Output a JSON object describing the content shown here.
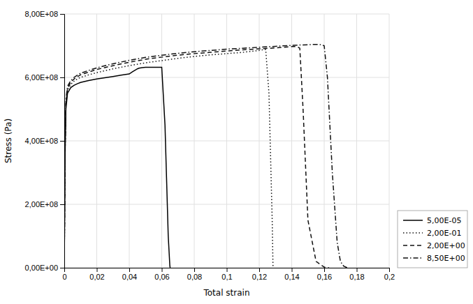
{
  "chart_data": {
    "type": "line",
    "xlabel": "Total strain",
    "ylabel": "Stress (Pa)",
    "xlim": [
      0,
      0.2
    ],
    "ylim": [
      0,
      800000000.0
    ],
    "xticks": [
      0,
      {
        "value": 0.02,
        "label": "0,02"
      },
      {
        "value": 0.04,
        "label": "0,04"
      },
      {
        "value": 0.06,
        "label": "0,06"
      },
      {
        "value": 0.08,
        "label": "0,08"
      },
      {
        "value": 0.1,
        "label": "0,1"
      },
      {
        "value": 0.12,
        "label": "0,12"
      },
      {
        "value": 0.14,
        "label": "0,14"
      },
      {
        "value": 0.16,
        "label": "0,16"
      },
      {
        "value": 0.18,
        "label": "0,18"
      },
      {
        "value": 0.2,
        "label": "0,2"
      }
    ],
    "yticks": [
      {
        "value": 0,
        "label": "0,00E+00"
      },
      {
        "value": 200000000.0,
        "label": "2,00E+08"
      },
      {
        "value": 400000000.0,
        "label": "4,00E+08"
      },
      {
        "value": 600000000.0,
        "label": "6,00E+08"
      },
      {
        "value": 800000000.0,
        "label": "8,00E+08"
      }
    ],
    "grid": true,
    "legend": "lower right",
    "series": [
      {
        "name": "5,00E-05",
        "color": "#000000",
        "line_style": "solid",
        "x": [
          0,
          0.0005,
          0.001,
          0.002,
          0.004,
          0.006,
          0.008,
          0.01,
          0.015,
          0.02,
          0.025,
          0.03,
          0.035,
          0.04,
          0.042,
          0.044,
          0.045,
          0.046,
          0.048,
          0.05,
          0.055,
          0.06,
          0.062,
          0.064,
          0.065,
          0.0652
        ],
        "values": [
          0,
          350000000.0,
          500000000.0,
          550000000.0,
          568000000.0,
          575000000.0,
          580000000.0,
          584000000.0,
          590000000.0,
          595000000.0,
          599000000.0,
          603000000.0,
          607000000.0,
          611000000.0,
          618000000.0,
          624000000.0,
          627000000.0,
          629000000.0,
          631000000.0,
          632000000.0,
          632000000.0,
          632000000.0,
          450000000.0,
          100000000.0,
          5000000.0,
          0
        ]
      },
      {
        "name": "2,00E-01",
        "color": "#111111",
        "line_style": "dotted",
        "x": [
          0,
          0.0005,
          0.001,
          0.002,
          0.004,
          0.006,
          0.008,
          0.01,
          0.015,
          0.02,
          0.025,
          0.03,
          0.04,
          0.05,
          0.06,
          0.07,
          0.08,
          0.09,
          0.1,
          0.11,
          0.12,
          0.122,
          0.124,
          0.126,
          0.128,
          0.1285
        ],
        "values": [
          0,
          360000000.0,
          510000000.0,
          560000000.0,
          578000000.0,
          588000000.0,
          595000000.0,
          600000000.0,
          608000000.0,
          615000000.0,
          621000000.0,
          627000000.0,
          637000000.0,
          646000000.0,
          653000000.0,
          660000000.0,
          666000000.0,
          671000000.0,
          675000000.0,
          679000000.0,
          685000000.0,
          687000000.0,
          688000000.0,
          550000000.0,
          150000000.0,
          0
        ]
      },
      {
        "name": "2,00E+00",
        "color": "#111111",
        "line_style": "dashed",
        "x": [
          0,
          0.0005,
          0.001,
          0.002,
          0.004,
          0.006,
          0.008,
          0.01,
          0.015,
          0.02,
          0.025,
          0.03,
          0.04,
          0.05,
          0.06,
          0.07,
          0.08,
          0.09,
          0.1,
          0.11,
          0.12,
          0.13,
          0.135,
          0.14,
          0.142,
          0.144,
          0.145,
          0.147,
          0.15,
          0.155,
          0.16,
          0.162,
          0.163
        ],
        "values": [
          0,
          370000000.0,
          520000000.0,
          565000000.0,
          585000000.0,
          595000000.0,
          602000000.0,
          608000000.0,
          617000000.0,
          625000000.0,
          631000000.0,
          637000000.0,
          648000000.0,
          657000000.0,
          664000000.0,
          670000000.0,
          675000000.0,
          679000000.0,
          683000000.0,
          687000000.0,
          690000000.0,
          693000000.0,
          695000000.0,
          697000000.0,
          697000000.0,
          695000000.0,
          692000000.0,
          500000000.0,
          150000000.0,
          20000000.0,
          2000000.0,
          0,
          0
        ]
      },
      {
        "name": "8,50E+00",
        "color": "#111111",
        "line_style": "dashdot",
        "x": [
          0,
          0.0005,
          0.001,
          0.002,
          0.004,
          0.006,
          0.008,
          0.01,
          0.015,
          0.02,
          0.025,
          0.03,
          0.04,
          0.05,
          0.06,
          0.07,
          0.08,
          0.09,
          0.1,
          0.11,
          0.12,
          0.13,
          0.14,
          0.15,
          0.155,
          0.158,
          0.16,
          0.162,
          0.165,
          0.168,
          0.17,
          0.172,
          0.174,
          0.1745
        ],
        "values": [
          0,
          380000000.0,
          530000000.0,
          572000000.0,
          590000000.0,
          600000000.0,
          607000000.0,
          613000000.0,
          622000000.0,
          630000000.0,
          637000000.0,
          643000000.0,
          654000000.0,
          663000000.0,
          670000000.0,
          676000000.0,
          681000000.0,
          685000000.0,
          689000000.0,
          692000000.0,
          695000000.0,
          698000000.0,
          701000000.0,
          703000000.0,
          704000000.0,
          703000000.0,
          700000000.0,
          600000000.0,
          300000000.0,
          80000000.0,
          20000000.0,
          5000000.0,
          500000.0,
          0
        ]
      }
    ]
  }
}
